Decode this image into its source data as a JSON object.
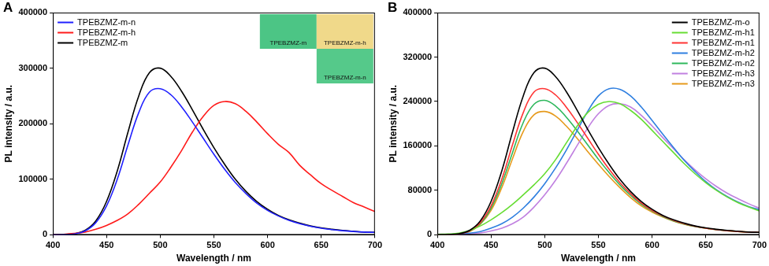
{
  "chart_data": [
    {
      "type": "line",
      "title": "A",
      "x": [
        400,
        410,
        420,
        430,
        440,
        450,
        460,
        470,
        480,
        490,
        500,
        510,
        520,
        530,
        540,
        550,
        560,
        570,
        580,
        590,
        600,
        610,
        620,
        630,
        640,
        650,
        660,
        670,
        680,
        690,
        700
      ],
      "series": [
        {
          "name": "TPEBZMZ-m-n",
          "color": "#2020ff",
          "values": [
            0,
            400,
            1500,
            7000,
            22000,
            52000,
            100000,
            162000,
            220000,
            257000,
            263000,
            252000,
            230000,
            203000,
            174000,
            145000,
            118000,
            94000,
            74000,
            57000,
            44000,
            34000,
            26000,
            20000,
            15500,
            12000,
            9500,
            7500,
            6000,
            5000,
            4500
          ]
        },
        {
          "name": "TPEBZMZ-m-h",
          "color": "#ff1a1a",
          "values": [
            500,
            1000,
            2500,
            5000,
            10000,
            17000,
            26000,
            38000,
            55000,
            75000,
            95000,
            122000,
            152000,
            185000,
            213000,
            233000,
            240000,
            236000,
            222000,
            203000,
            182000,
            163000,
            148000,
            125000,
            108000,
            92000,
            80000,
            69000,
            58000,
            50000,
            42000
          ]
        },
        {
          "name": "TPEBZMZ-m",
          "color": "#000000",
          "values": [
            0,
            500,
            2000,
            8000,
            25000,
            60000,
            115000,
            185000,
            250000,
            292000,
            300000,
            285000,
            258000,
            225000,
            190000,
            157000,
            127000,
            100000,
            78000,
            60000,
            46000,
            35000,
            27000,
            21000,
            16000,
            12500,
            10000,
            8000,
            6500,
            5000,
            4500
          ]
        }
      ],
      "xlim": [
        400,
        700
      ],
      "xticks": [
        400,
        450,
        500,
        550,
        600,
        650,
        700
      ],
      "ylim": [
        0,
        400000
      ],
      "yticks": [
        0,
        100000,
        200000,
        300000,
        400000
      ],
      "x_label": "Wavelength / nm",
      "y_label": "PL intensity / a.u.",
      "grid": false,
      "legend": "upper left",
      "inset": [
        {
          "label": "TPEBZMZ-m",
          "color": "#4cc585"
        },
        {
          "label": "TPEBZMZ-m-h",
          "color": "#f0d98a"
        },
        {
          "label": "TPEBZMZ-m-n",
          "color": "#55c98a"
        }
      ]
    },
    {
      "type": "line",
      "title": "B",
      "x": [
        400,
        410,
        420,
        430,
        440,
        450,
        460,
        470,
        480,
        490,
        500,
        510,
        520,
        530,
        540,
        550,
        560,
        570,
        580,
        590,
        600,
        610,
        620,
        630,
        640,
        650,
        660,
        670,
        680,
        690,
        700
      ],
      "series": [
        {
          "name": "TPEBZMZ-m-o",
          "color": "#000000",
          "values": [
            0,
            500,
            2000,
            8000,
            25000,
            60000,
            115000,
            185000,
            250000,
            292000,
            300000,
            285000,
            258000,
            225000,
            190000,
            157000,
            127000,
            100000,
            78000,
            60000,
            46000,
            35000,
            27000,
            21000,
            16000,
            12500,
            10000,
            8000,
            6500,
            5000,
            4500
          ]
        },
        {
          "name": "TPEBZMZ-m-h1",
          "color": "#66dd33",
          "values": [
            1000,
            1500,
            3000,
            8000,
            16000,
            27000,
            40000,
            55000,
            72000,
            90000,
            110000,
            135000,
            165000,
            195000,
            220000,
            235000,
            240000,
            236000,
            224000,
            208000,
            188000,
            168000,
            148000,
            128000,
            110000,
            94000,
            80000,
            68000,
            58000,
            50000,
            43000
          ]
        },
        {
          "name": "TPEBZMZ-m-n1",
          "color": "#ff3333",
          "values": [
            0,
            400,
            1500,
            7000,
            22000,
            52000,
            100000,
            162000,
            220000,
            257000,
            263000,
            252000,
            230000,
            203000,
            174000,
            145000,
            118000,
            94000,
            74000,
            57000,
            44000,
            34000,
            26000,
            20000,
            15500,
            12000,
            9500,
            7500,
            6000,
            5000,
            4500
          ]
        },
        {
          "name": "TPEBZMZ-m-h2",
          "color": "#2f7fe0",
          "values": [
            500,
            800,
            1500,
            3000,
            6000,
            12000,
            20000,
            32000,
            48000,
            68000,
            92000,
            120000,
            152000,
            187000,
            222000,
            250000,
            263000,
            262000,
            250000,
            230000,
            206000,
            181000,
            157000,
            134000,
            114000,
            96000,
            81000,
            69000,
            59000,
            51000,
            45000
          ]
        },
        {
          "name": "TPEBZMZ-m-n2",
          "color": "#2eb85c",
          "values": [
            0,
            400,
            1500,
            6500,
            20000,
            48000,
            92000,
            148000,
            202000,
            235000,
            242000,
            232000,
            212000,
            188000,
            162000,
            136000,
            112000,
            90000,
            71000,
            55000,
            43000,
            33000,
            25000,
            19500,
            15000,
            12000,
            9500,
            7500,
            6000,
            5000,
            4500
          ]
        },
        {
          "name": "TPEBZMZ-m-h3",
          "color": "#c080e0",
          "values": [
            0,
            300,
            800,
            1800,
            3500,
            7000,
            12000,
            20000,
            32000,
            50000,
            72000,
            98000,
            128000,
            160000,
            192000,
            218000,
            233000,
            236000,
            230000,
            215000,
            196000,
            175000,
            155000,
            135000,
            117000,
            101000,
            87000,
            75000,
            65000,
            56000,
            48000
          ]
        },
        {
          "name": "TPEBZMZ-m-n3",
          "color": "#e69a1c",
          "values": [
            0,
            400,
            1400,
            6000,
            19000,
            44000,
            85000,
            137000,
            186000,
            216000,
            222000,
            214000,
            196000,
            174000,
            150000,
            127000,
            105000,
            85000,
            67000,
            52000,
            41000,
            32000,
            24500,
            19000,
            15000,
            12000,
            9500,
            7500,
            6000,
            5000,
            4500
          ]
        }
      ],
      "xlim": [
        400,
        700
      ],
      "xticks": [
        400,
        450,
        500,
        550,
        600,
        650,
        700
      ],
      "ylim": [
        0,
        400000
      ],
      "yticks": [
        0,
        80000,
        160000,
        240000,
        320000,
        400000
      ],
      "x_label": "Wavelength / nm",
      "y_label": "PL intensity / a.u.",
      "grid": false,
      "legend": "upper right"
    }
  ]
}
